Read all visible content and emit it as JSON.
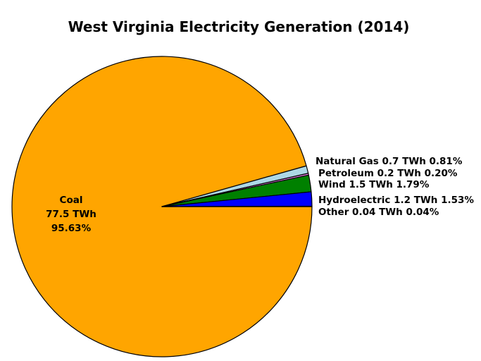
{
  "title": "West Virginia Electricity Generation (2014)",
  "background_color": "#ffffff",
  "chart_data": {
    "type": "pie",
    "title": "West Virginia Electricity Generation (2014)",
    "value_unit": "TWh",
    "start_angle_deg": 0,
    "direction": "clockwise",
    "edge_color": "#000000",
    "legend_position": "none",
    "slices": [
      {
        "name": "Coal",
        "value_twh": 77.5,
        "percent": 95.63,
        "color": "#FFA500",
        "label": "Coal 77.5 TWh 95.63%",
        "label_placement": "inside"
      },
      {
        "name": "Natural Gas",
        "value_twh": 0.7,
        "percent": 0.81,
        "color": "#ADD8E6",
        "label": "Natural Gas 0.7 TWh 0.81%",
        "label_placement": "outside"
      },
      {
        "name": "Petroleum",
        "value_twh": 0.2,
        "percent": 0.2,
        "color": "#EE82EE",
        "label": "Petroleum 0.2 TWh 0.20%",
        "label_placement": "outside"
      },
      {
        "name": "Wind",
        "value_twh": 1.5,
        "percent": 1.79,
        "color": "#008000",
        "label": "Wind 1.5 TWh 1.79%",
        "label_placement": "outside"
      },
      {
        "name": "Hydroelectric",
        "value_twh": 1.2,
        "percent": 1.53,
        "color": "#0000FF",
        "label": "Hydroelectric 1.2 TWh 1.53%",
        "label_placement": "outside"
      },
      {
        "name": "Other",
        "value_twh": 0.04,
        "percent": 0.04,
        "color": "#333333",
        "label": "Other 0.04 TWh 0.04%",
        "label_placement": "outside"
      }
    ],
    "inside_label_lines": [
      "Coal",
      "77.5 TWh",
      "95.63%"
    ]
  }
}
